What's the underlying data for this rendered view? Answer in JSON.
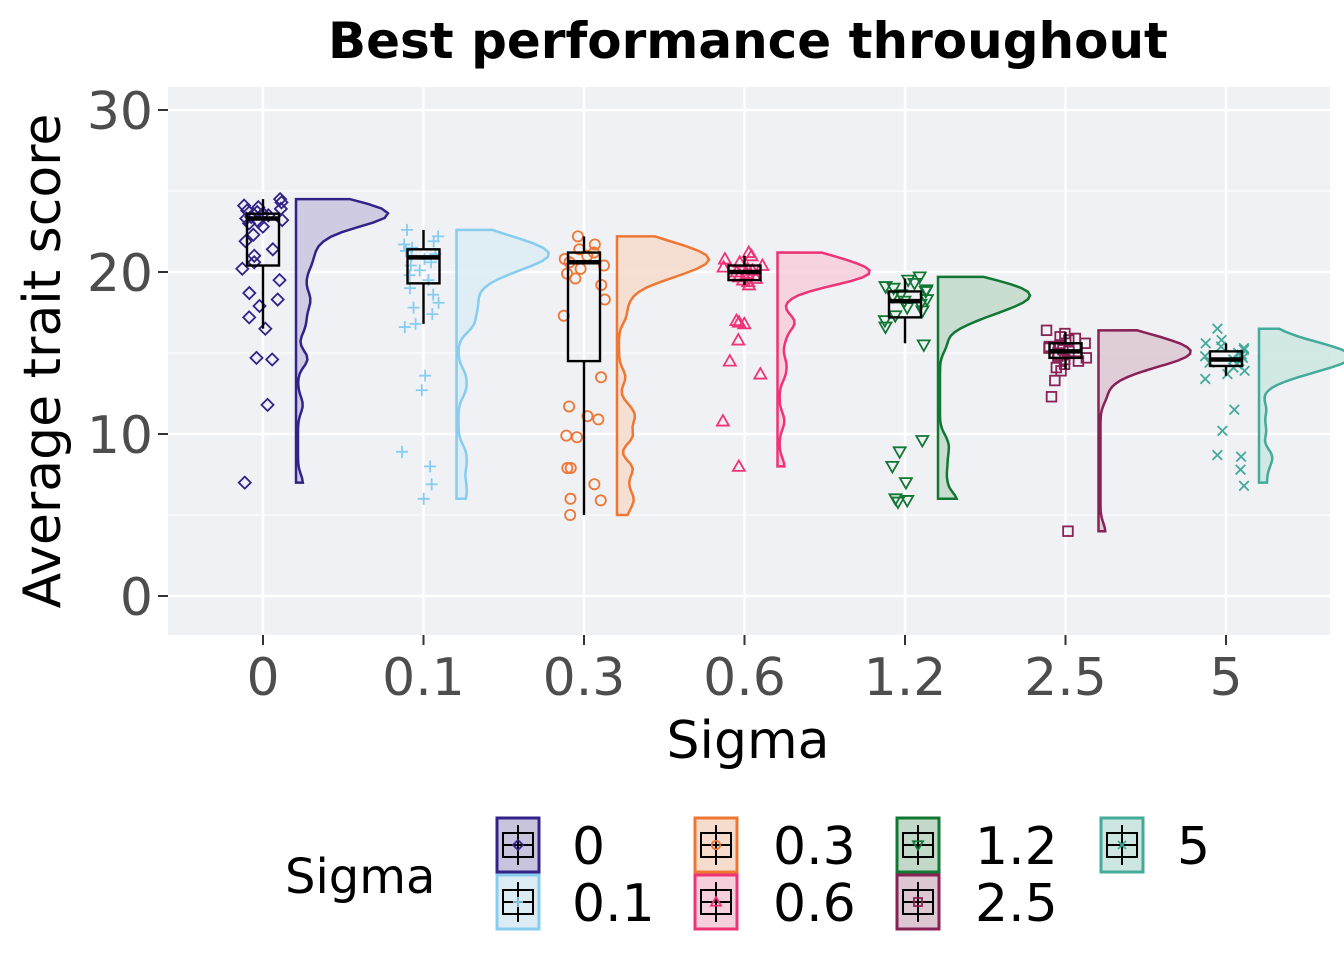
{
  "chart_data": {
    "type": "raincloud",
    "title": "Best performance throughout",
    "xlabel": "Sigma",
    "ylabel": "Average trait score",
    "ylim": [
      -2.5,
      31.5
    ],
    "yticks": [
      0,
      10,
      20,
      30
    ],
    "categories": [
      "0",
      "0.1",
      "0.3",
      "0.6",
      "1.2",
      "2.5",
      "5"
    ],
    "legend": {
      "title": "Sigma",
      "position": "bottom"
    },
    "panel_background": "#f0f1f5",
    "grid": true,
    "series": [
      {
        "name": "0",
        "color": "#332288",
        "fill": "#c9c4de",
        "shape": "diamond",
        "box": {
          "min": 16.5,
          "q1": 20.4,
          "median": 23.3,
          "q3": 23.6,
          "max": 24.5
        },
        "density_range": [
          7,
          24.5
        ],
        "density_peak": 23.6,
        "points": [
          24.5,
          24.3,
          24.1,
          24.0,
          23.9,
          23.8,
          23.7,
          23.6,
          23.5,
          23.4,
          23.3,
          23.2,
          23.1,
          23.0,
          22.8,
          22.3,
          21.9,
          21.4,
          21.0,
          20.6,
          20.2,
          19.5,
          18.7,
          18.3,
          17.9,
          17.2,
          16.5,
          14.7,
          14.6,
          11.8,
          7.0
        ]
      },
      {
        "name": "0.1",
        "color": "#88ccee",
        "fill": "#dcecf5",
        "shape": "plus",
        "box": {
          "min": 16.8,
          "q1": 19.3,
          "median": 20.9,
          "q3": 21.4,
          "max": 22.6
        },
        "density_range": [
          6,
          22.6
        ],
        "density_peak": 21.1,
        "points": [
          22.6,
          22.2,
          21.9,
          21.7,
          21.5,
          21.3,
          21.1,
          21.0,
          20.8,
          20.6,
          20.4,
          20.1,
          19.8,
          19.5,
          19.0,
          18.6,
          18.1,
          17.8,
          17.4,
          16.8,
          16.6,
          13.6,
          12.7,
          8.9,
          8.0,
          6.9,
          6.0
        ]
      },
      {
        "name": "0.3",
        "color": "#ee7733",
        "fill": "#f6dccd",
        "shape": "circle",
        "box": {
          "min": 5.0,
          "q1": 14.5,
          "median": 20.6,
          "q3": 21.2,
          "max": 22.2
        },
        "density_range": [
          5,
          22.2
        ],
        "density_peak": 20.8,
        "points": [
          22.2,
          21.7,
          21.4,
          21.2,
          21.0,
          20.8,
          20.6,
          20.4,
          20.2,
          19.9,
          19.6,
          19.2,
          18.3,
          17.3,
          13.5,
          11.7,
          11.1,
          10.9,
          9.9,
          9.8,
          7.9,
          7.9,
          6.9,
          6.0,
          5.9,
          5.0
        ]
      },
      {
        "name": "0.6",
        "color": "#ee3377",
        "fill": "#f6cfdc",
        "shape": "triangle-up",
        "box": {
          "min": 19.2,
          "q1": 19.5,
          "median": 20.0,
          "q3": 20.4,
          "max": 21.0
        },
        "density_range": [
          8,
          21.2
        ],
        "density_peak": 20.1,
        "points": [
          21.2,
          21.0,
          20.8,
          20.6,
          20.4,
          20.3,
          20.2,
          20.1,
          20.0,
          19.9,
          19.8,
          19.7,
          19.6,
          19.5,
          19.4,
          19.2,
          17.0,
          16.9,
          16.8,
          15.8,
          14.5,
          13.7,
          10.8,
          8.0
        ]
      },
      {
        "name": "1.2",
        "color": "#117733",
        "fill": "#c2d9c9",
        "shape": "triangle-down",
        "box": {
          "min": 15.6,
          "q1": 17.2,
          "median": 18.2,
          "q3": 18.8,
          "max": 19.6
        },
        "density_range": [
          6,
          19.7
        ],
        "density_peak": 18.4,
        "points": [
          19.7,
          19.5,
          19.3,
          19.1,
          19.0,
          18.9,
          18.8,
          18.6,
          18.5,
          18.3,
          18.2,
          18.0,
          17.8,
          17.6,
          17.3,
          17.0,
          16.6,
          15.5,
          9.6,
          8.9,
          8.0,
          7.0,
          6.0,
          5.9,
          5.8
        ]
      },
      {
        "name": "2.5",
        "color": "#882255",
        "fill": "#dcc7d2",
        "shape": "square",
        "box": {
          "min": 14.0,
          "q1": 14.7,
          "median": 15.1,
          "q3": 15.6,
          "max": 16.3
        },
        "density_range": [
          4,
          16.4
        ],
        "density_peak": 15.0,
        "points": [
          16.4,
          16.2,
          16.0,
          15.9,
          15.8,
          15.6,
          15.5,
          15.4,
          15.3,
          15.2,
          15.1,
          15.0,
          14.9,
          14.8,
          14.7,
          14.6,
          14.5,
          14.3,
          14.1,
          13.9,
          13.3,
          12.3,
          4.0
        ]
      },
      {
        "name": "5",
        "color": "#44aa99",
        "fill": "#cde6e1",
        "shape": "cross",
        "box": {
          "min": 13.6,
          "q1": 14.2,
          "median": 14.6,
          "q3": 15.1,
          "max": 15.6
        },
        "density_range": [
          7,
          16.5
        ],
        "density_peak": 14.8,
        "points": [
          16.5,
          15.8,
          15.6,
          15.4,
          15.3,
          15.2,
          15.0,
          14.9,
          14.8,
          14.7,
          14.6,
          14.5,
          14.4,
          14.3,
          14.1,
          13.9,
          13.7,
          13.4,
          11.5,
          10.2,
          8.7,
          8.6,
          7.8,
          6.8
        ]
      }
    ]
  }
}
